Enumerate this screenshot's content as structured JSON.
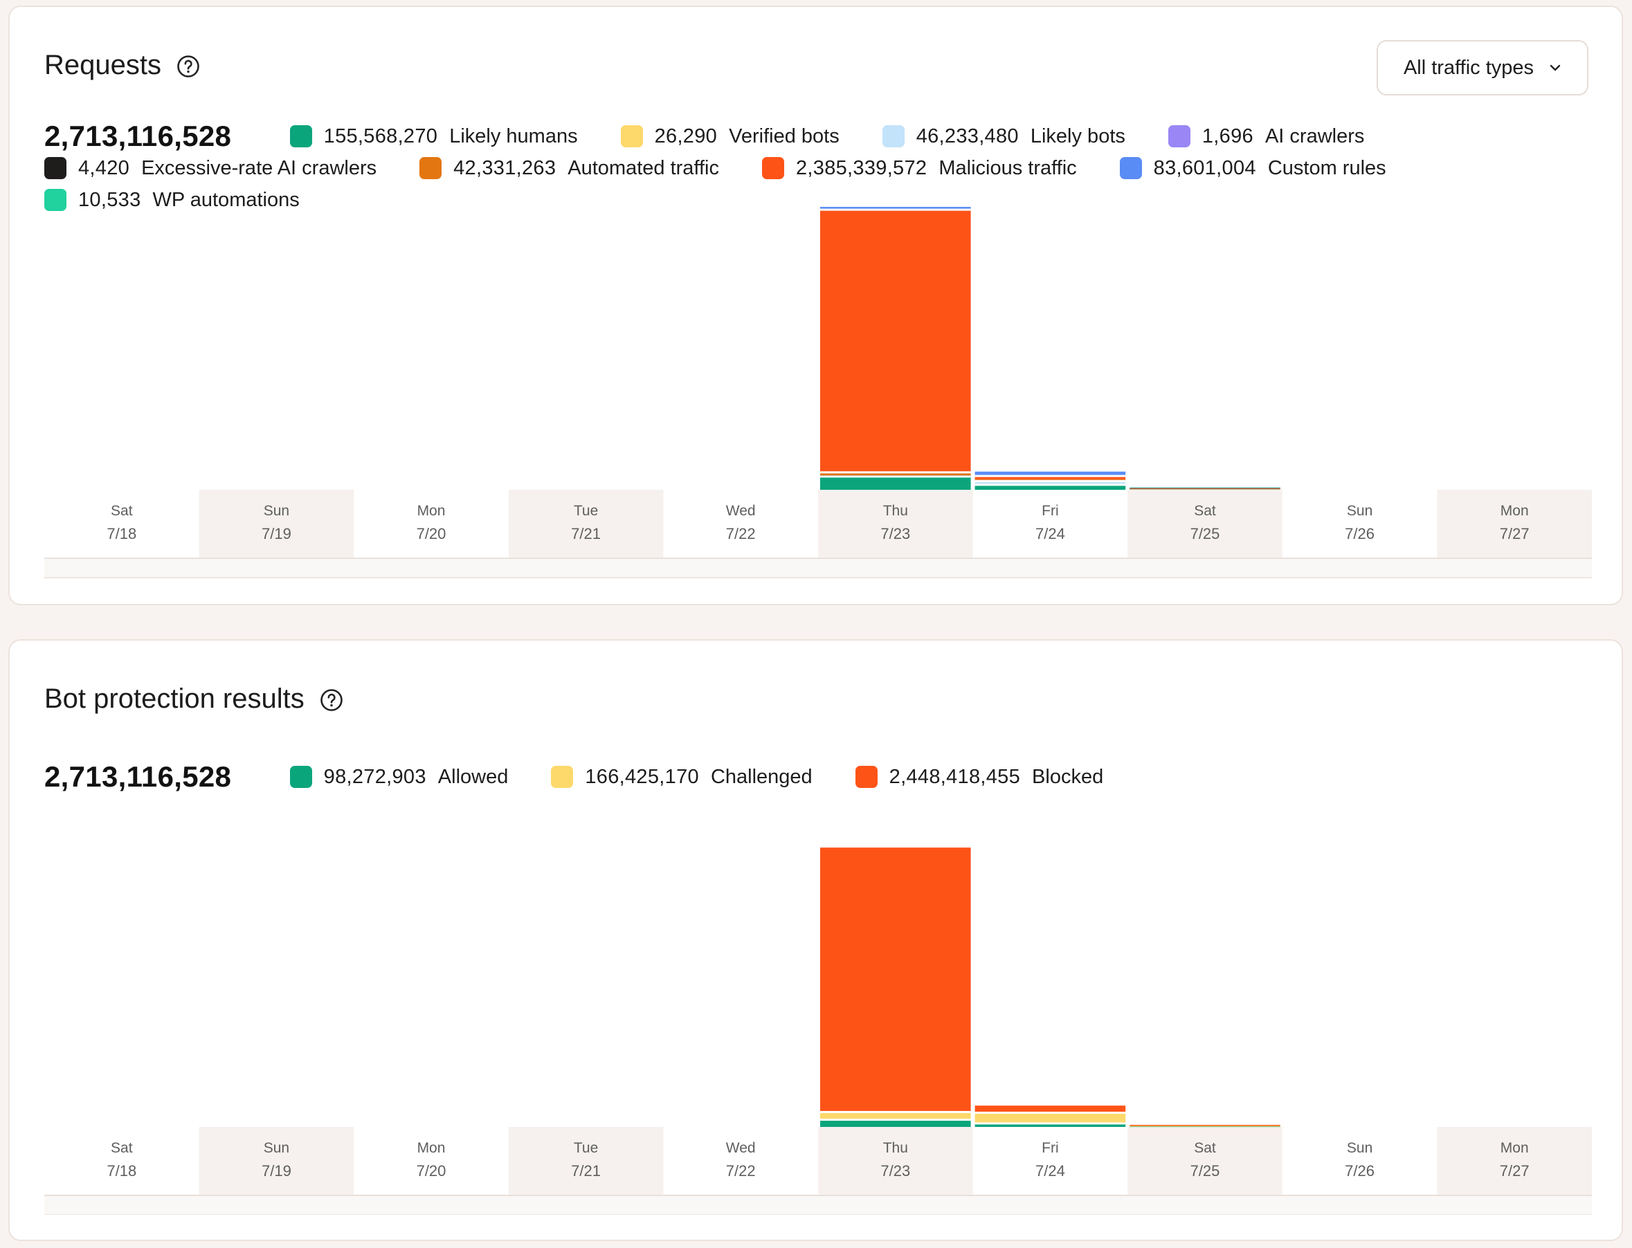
{
  "requests": {
    "title": "Requests",
    "dropdown_label": "All traffic types",
    "total": "2,713,116,528",
    "legend": [
      {
        "value": "155,568,270",
        "label": "Likely humans",
        "color": "#0ba57c"
      },
      {
        "value": "26,290",
        "label": "Verified bots",
        "color": "#fdd86b"
      },
      {
        "value": "46,233,480",
        "label": "Likely bots",
        "color": "#c3e3fb"
      },
      {
        "value": "1,696",
        "label": "AI crawlers",
        "color": "#9a86f5"
      },
      {
        "value": "4,420",
        "label": "Excessive-rate AI crawlers",
        "color": "#1f1c1c"
      },
      {
        "value": "42,331,263",
        "label": "Automated traffic",
        "color": "#e37611"
      },
      {
        "value": "2,385,339,572",
        "label": "Malicious traffic",
        "color": "#fd5317"
      },
      {
        "value": "83,601,004",
        "label": "Custom rules",
        "color": "#5a8cf5"
      },
      {
        "value": "10,533",
        "label": "WP automations",
        "color": "#21d19e"
      }
    ]
  },
  "bot_protection": {
    "title": "Bot protection results",
    "total": "2,713,116,528",
    "legend": [
      {
        "value": "98,272,903",
        "label": "Allowed",
        "color": "#0ba57c"
      },
      {
        "value": "166,425,170",
        "label": "Challenged",
        "color": "#fdd86b"
      },
      {
        "value": "2,448,418,455",
        "label": "Blocked",
        "color": "#fd5317"
      }
    ]
  },
  "chart_data": [
    {
      "type": "bar",
      "stacked": true,
      "categories": [
        "Sat 7/18",
        "Sun 7/19",
        "Mon 7/20",
        "Tue 7/21",
        "Wed 7/22",
        "Thu 7/23",
        "Fri 7/24",
        "Sat 7/25",
        "Sun 7/26",
        "Mon 7/27"
      ],
      "x_day": [
        "Sat",
        "Sun",
        "Mon",
        "Tue",
        "Wed",
        "Thu",
        "Fri",
        "Sat",
        "Sun",
        "Mon"
      ],
      "x_date": [
        "7/18",
        "7/19",
        "7/20",
        "7/21",
        "7/22",
        "7/23",
        "7/24",
        "7/25",
        "7/26",
        "7/27"
      ],
      "ylim": [
        0,
        2320000000
      ],
      "grid": false,
      "legend_position": "top-left",
      "series": [
        {
          "name": "Likely humans",
          "color": "#0ba57c",
          "values": [
            0,
            0,
            0,
            0,
            0,
            110000000,
            41500000,
            4000000,
            0,
            0
          ]
        },
        {
          "name": "Verified bots",
          "color": "#fdd86b",
          "values": [
            0,
            0,
            0,
            0,
            0,
            8000,
            15000,
            3000,
            0,
            0
          ]
        },
        {
          "name": "Likely bots",
          "color": "#c3e3fb",
          "values": [
            0,
            0,
            0,
            0,
            0,
            10000000,
            31000000,
            5000000,
            0,
            0
          ]
        },
        {
          "name": "AI crawlers",
          "color": "#9a86f5",
          "values": [
            0,
            0,
            0,
            0,
            0,
            500,
            900,
            200,
            0,
            0
          ]
        },
        {
          "name": "Excessive-rate AI crawlers",
          "color": "#1f1c1c",
          "values": [
            0,
            0,
            0,
            0,
            0,
            1500,
            2500,
            400,
            0,
            0
          ]
        },
        {
          "name": "Automated traffic",
          "color": "#e37611",
          "values": [
            0,
            0,
            0,
            0,
            0,
            25000000,
            15000000,
            2000000,
            0,
            0
          ]
        },
        {
          "name": "Malicious traffic",
          "color": "#fd5317",
          "values": [
            0,
            0,
            0,
            0,
            0,
            2180000000,
            27000000,
            3000000,
            0,
            0
          ]
        },
        {
          "name": "Custom rules",
          "color": "#5a8cf5",
          "values": [
            0,
            0,
            0,
            0,
            0,
            32000000,
            45000000,
            6000000,
            0,
            0
          ]
        },
        {
          "name": "WP automations",
          "color": "#21d19e",
          "values": [
            0,
            0,
            0,
            0,
            0,
            4000,
            5000,
            1500,
            0,
            0
          ]
        }
      ]
    },
    {
      "type": "bar",
      "stacked": true,
      "categories": [
        "Sat 7/18",
        "Sun 7/19",
        "Mon 7/20",
        "Tue 7/21",
        "Wed 7/22",
        "Thu 7/23",
        "Fri 7/24",
        "Sat 7/25",
        "Sun 7/26",
        "Mon 7/27"
      ],
      "x_day": [
        "Sat",
        "Sun",
        "Mon",
        "Tue",
        "Wed",
        "Thu",
        "Fri",
        "Sat",
        "Sun",
        "Mon"
      ],
      "x_date": [
        "7/18",
        "7/19",
        "7/20",
        "7/21",
        "7/22",
        "7/23",
        "7/24",
        "7/25",
        "7/26",
        "7/27"
      ],
      "ylim": [
        0,
        2320000000
      ],
      "grid": false,
      "legend_position": "top-left",
      "series": [
        {
          "name": "Allowed",
          "color": "#0ba57c",
          "values": [
            0,
            0,
            0,
            0,
            0,
            60000000,
            29000000,
            3000000,
            0,
            0
          ]
        },
        {
          "name": "Challenged",
          "color": "#fdd86b",
          "values": [
            0,
            0,
            0,
            0,
            0,
            64000000,
            89000000,
            6000000,
            0,
            0
          ]
        },
        {
          "name": "Blocked",
          "color": "#fd5317",
          "values": [
            0,
            0,
            0,
            0,
            0,
            2195000000,
            59000000,
            8000000,
            0,
            0
          ]
        }
      ]
    }
  ]
}
